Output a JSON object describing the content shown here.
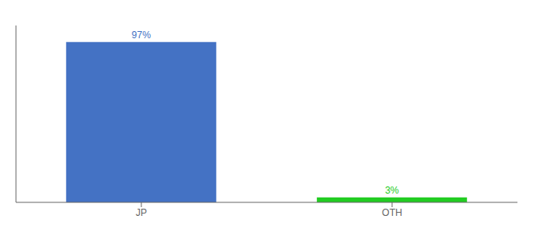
{
  "chart_data": {
    "type": "bar",
    "categories": [
      "JP",
      "OTH"
    ],
    "values": [
      97,
      3
    ],
    "value_labels": [
      "97%",
      "3%"
    ],
    "colors": [
      "#4472c4",
      "#22cc22"
    ],
    "ylim": [
      0,
      107
    ],
    "data_labels": true,
    "tick_labels": "x"
  }
}
